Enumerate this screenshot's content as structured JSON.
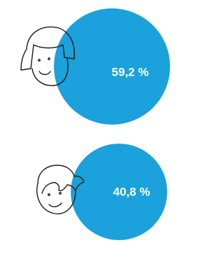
{
  "chart_data": {
    "type": "bubble",
    "values": [
      59.2,
      40.8
    ],
    "value_labels": [
      "59,2 %",
      "40,8 %"
    ],
    "color": "#1ba1db"
  }
}
